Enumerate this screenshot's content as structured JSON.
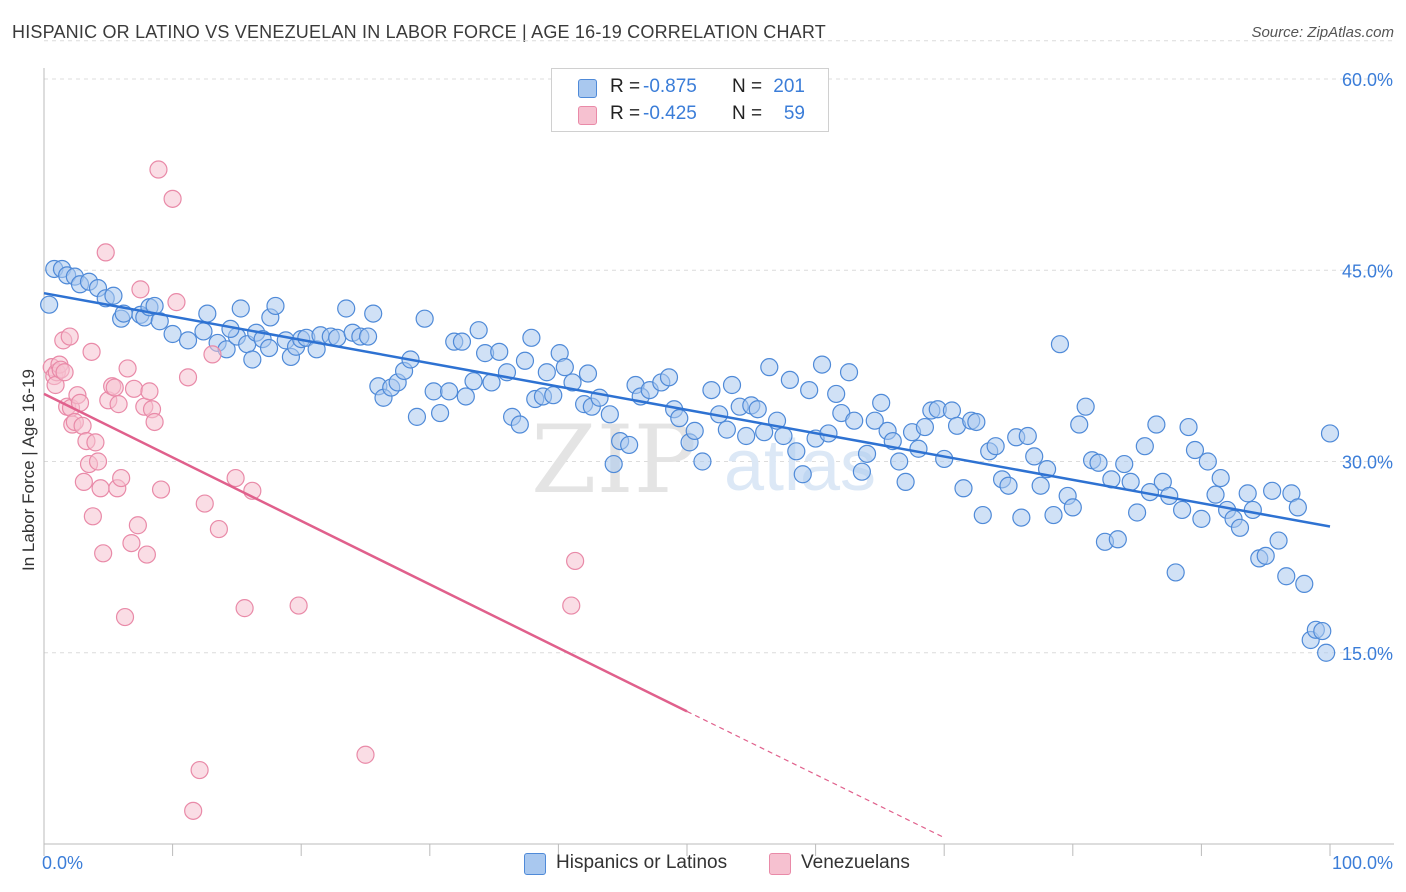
{
  "title": "HISPANIC OR LATINO VS VENEZUELAN IN LABOR FORCE | AGE 16-19 CORRELATION CHART",
  "source": "Source: ZipAtlas.com",
  "watermark": {
    "zip": "ZIP",
    "atlas": "atlas"
  },
  "colors": {
    "blue_fill": "#a9c8ef",
    "blue_stroke": "#4f8ad8",
    "blue_line": "#2e72d2",
    "pink_fill": "#f6c1d0",
    "pink_stroke": "#e98aa8",
    "pink_line": "#e0608c",
    "axis_label": "#3b7dd8",
    "grid": "#dcdcdc"
  },
  "legend": {
    "rows": [
      {
        "r_label": "R =",
        "r_value": "-0.875",
        "n_label": "N =",
        "n_value": "201"
      },
      {
        "r_label": "R =",
        "r_value": "-0.425",
        "n_label": "N =",
        "n_value": "59"
      }
    ]
  },
  "bottom_legend": [
    "Hispanics or Latinos",
    "Venezuelans"
  ],
  "chart_data": {
    "type": "scatter",
    "title": "HISPANIC OR LATINO VS VENEZUELAN IN LABOR FORCE | AGE 16-19 CORRELATION CHART",
    "xlabel": "",
    "ylabel": "In Labor Force | Age 16-19",
    "xlim": [
      0,
      100
    ],
    "ylim": [
      0,
      63
    ],
    "x_tick_labels": [
      "0.0%",
      "100.0%"
    ],
    "y_ticks": [
      15,
      30,
      45,
      60
    ],
    "y_tick_labels": [
      "15.0%",
      "30.0%",
      "45.0%",
      "60.0%"
    ],
    "grid": true,
    "legend_position": "top-center",
    "series": [
      {
        "name": "Hispanics or Latinos",
        "color": "#4f8ad8",
        "trend": {
          "x": [
            0,
            100
          ],
          "y": [
            43.2,
            24.9
          ]
        },
        "points": [
          [
            0.4,
            42.3
          ],
          [
            0.8,
            45.1
          ],
          [
            1.4,
            45.1
          ],
          [
            1.8,
            44.6
          ],
          [
            2.4,
            44.5
          ],
          [
            2.8,
            43.9
          ],
          [
            3.5,
            44.1
          ],
          [
            4.2,
            43.6
          ],
          [
            4.8,
            42.8
          ],
          [
            5.4,
            43.0
          ],
          [
            6.0,
            41.2
          ],
          [
            6.2,
            41.6
          ],
          [
            7.5,
            41.5
          ],
          [
            7.8,
            41.3
          ],
          [
            8.2,
            42.1
          ],
          [
            8.6,
            42.2
          ],
          [
            9.0,
            41.0
          ],
          [
            10.0,
            40.0
          ],
          [
            11.2,
            39.5
          ],
          [
            12.4,
            40.2
          ],
          [
            12.7,
            41.6
          ],
          [
            13.5,
            39.3
          ],
          [
            14.2,
            38.8
          ],
          [
            15.0,
            39.8
          ],
          [
            14.5,
            40.4
          ],
          [
            15.3,
            42.0
          ],
          [
            15.8,
            39.2
          ],
          [
            16.2,
            38.0
          ],
          [
            16.5,
            40.1
          ],
          [
            17.0,
            39.6
          ],
          [
            17.5,
            38.9
          ],
          [
            17.6,
            41.3
          ],
          [
            18.0,
            42.2
          ],
          [
            18.8,
            39.5
          ],
          [
            19.2,
            38.2
          ],
          [
            19.6,
            39.0
          ],
          [
            20.0,
            39.6
          ],
          [
            20.4,
            39.7
          ],
          [
            21.2,
            38.8
          ],
          [
            21.5,
            39.9
          ],
          [
            22.3,
            39.8
          ],
          [
            22.8,
            39.7
          ],
          [
            23.5,
            42.0
          ],
          [
            24.0,
            40.1
          ],
          [
            24.6,
            39.8
          ],
          [
            25.2,
            39.8
          ],
          [
            25.6,
            41.6
          ],
          [
            26.0,
            35.9
          ],
          [
            26.4,
            35.0
          ],
          [
            27.0,
            35.8
          ],
          [
            27.5,
            36.2
          ],
          [
            28.0,
            37.1
          ],
          [
            28.5,
            38.0
          ],
          [
            29.0,
            33.5
          ],
          [
            29.6,
            41.2
          ],
          [
            30.3,
            35.5
          ],
          [
            30.8,
            33.8
          ],
          [
            31.5,
            35.5
          ],
          [
            31.9,
            39.4
          ],
          [
            32.5,
            39.4
          ],
          [
            32.8,
            35.1
          ],
          [
            33.4,
            36.3
          ],
          [
            33.8,
            40.3
          ],
          [
            34.3,
            38.5
          ],
          [
            34.8,
            36.2
          ],
          [
            35.4,
            38.6
          ],
          [
            36.0,
            37.0
          ],
          [
            36.4,
            33.5
          ],
          [
            37.0,
            32.9
          ],
          [
            37.4,
            37.9
          ],
          [
            37.9,
            39.7
          ],
          [
            38.2,
            34.9
          ],
          [
            38.8,
            35.1
          ],
          [
            39.1,
            37.0
          ],
          [
            39.6,
            35.2
          ],
          [
            40.1,
            38.5
          ],
          [
            40.5,
            37.4
          ],
          [
            41.1,
            36.2
          ],
          [
            42.0,
            34.5
          ],
          [
            42.3,
            36.9
          ],
          [
            42.6,
            34.3
          ],
          [
            43.2,
            35.0
          ],
          [
            44.0,
            33.7
          ],
          [
            44.3,
            29.8
          ],
          [
            44.8,
            31.6
          ],
          [
            45.5,
            31.3
          ],
          [
            46.0,
            36.0
          ],
          [
            46.4,
            35.1
          ],
          [
            47.1,
            35.6
          ],
          [
            48.0,
            36.2
          ],
          [
            48.6,
            36.6
          ],
          [
            49.0,
            34.1
          ],
          [
            49.4,
            33.4
          ],
          [
            50.2,
            31.5
          ],
          [
            50.6,
            32.4
          ],
          [
            51.2,
            30.0
          ],
          [
            51.9,
            35.6
          ],
          [
            52.5,
            33.7
          ],
          [
            53.1,
            32.5
          ],
          [
            53.5,
            36.0
          ],
          [
            54.1,
            34.3
          ],
          [
            54.6,
            32.0
          ],
          [
            55.0,
            34.4
          ],
          [
            55.5,
            34.1
          ],
          [
            56.0,
            32.3
          ],
          [
            56.4,
            37.4
          ],
          [
            57.0,
            33.2
          ],
          [
            57.5,
            32.0
          ],
          [
            58.0,
            36.4
          ],
          [
            58.5,
            30.8
          ],
          [
            59.0,
            29.0
          ],
          [
            59.5,
            35.6
          ],
          [
            60.0,
            31.8
          ],
          [
            60.5,
            37.6
          ],
          [
            61.0,
            32.2
          ],
          [
            61.6,
            35.3
          ],
          [
            62.0,
            33.8
          ],
          [
            62.6,
            37.0
          ],
          [
            63.0,
            33.2
          ],
          [
            63.6,
            29.2
          ],
          [
            64.0,
            30.6
          ],
          [
            64.6,
            33.2
          ],
          [
            65.1,
            34.6
          ],
          [
            65.6,
            32.4
          ],
          [
            66.0,
            31.6
          ],
          [
            66.5,
            30.0
          ],
          [
            67.0,
            28.4
          ],
          [
            67.5,
            32.3
          ],
          [
            68.0,
            31.0
          ],
          [
            68.5,
            32.7
          ],
          [
            69.0,
            34.0
          ],
          [
            69.5,
            34.1
          ],
          [
            70.0,
            30.2
          ],
          [
            70.6,
            34.0
          ],
          [
            71.0,
            32.8
          ],
          [
            71.5,
            27.9
          ],
          [
            72.1,
            33.2
          ],
          [
            72.5,
            33.1
          ],
          [
            73.0,
            25.8
          ],
          [
            73.5,
            30.8
          ],
          [
            74.0,
            31.2
          ],
          [
            74.5,
            28.6
          ],
          [
            75.0,
            28.1
          ],
          [
            75.6,
            31.9
          ],
          [
            76.0,
            25.6
          ],
          [
            76.5,
            32.0
          ],
          [
            77.0,
            30.4
          ],
          [
            77.5,
            28.1
          ],
          [
            78.0,
            29.4
          ],
          [
            78.5,
            25.8
          ],
          [
            79.0,
            39.2
          ],
          [
            79.6,
            27.3
          ],
          [
            80.0,
            26.4
          ],
          [
            80.5,
            32.9
          ],
          [
            81.0,
            34.3
          ],
          [
            81.5,
            30.1
          ],
          [
            82.0,
            29.9
          ],
          [
            82.5,
            23.7
          ],
          [
            83.0,
            28.6
          ],
          [
            83.5,
            23.9
          ],
          [
            84.0,
            29.8
          ],
          [
            84.5,
            28.4
          ],
          [
            85.0,
            26.0
          ],
          [
            85.6,
            31.2
          ],
          [
            86.0,
            27.6
          ],
          [
            86.5,
            32.9
          ],
          [
            87.0,
            28.4
          ],
          [
            87.5,
            27.3
          ],
          [
            88.0,
            21.3
          ],
          [
            88.5,
            26.2
          ],
          [
            89.0,
            32.7
          ],
          [
            89.5,
            30.9
          ],
          [
            90.0,
            25.5
          ],
          [
            90.5,
            30.0
          ],
          [
            91.1,
            27.4
          ],
          [
            91.5,
            28.7
          ],
          [
            92.0,
            26.2
          ],
          [
            92.5,
            25.5
          ],
          [
            93.0,
            24.8
          ],
          [
            93.6,
            27.5
          ],
          [
            94.0,
            26.2
          ],
          [
            94.5,
            22.4
          ],
          [
            95.0,
            22.6
          ],
          [
            95.5,
            27.7
          ],
          [
            96.0,
            23.8
          ],
          [
            96.6,
            21.0
          ],
          [
            97.0,
            27.5
          ],
          [
            97.5,
            26.4
          ],
          [
            98.0,
            20.4
          ],
          [
            98.5,
            16.0
          ],
          [
            98.9,
            16.8
          ],
          [
            99.4,
            16.7
          ],
          [
            99.7,
            15.0
          ],
          [
            100.0,
            32.2
          ]
        ]
      },
      {
        "name": "Venezuelans",
        "color": "#e98aa8",
        "trend": {
          "x": [
            0,
            50
          ],
          "y": [
            35.3,
            10.4
          ],
          "dashed_to": {
            "x": 70,
            "y": 0.5
          }
        },
        "points": [
          [
            0.6,
            37.4
          ],
          [
            0.8,
            36.7
          ],
          [
            1.0,
            37.0
          ],
          [
            0.9,
            36.0
          ],
          [
            1.2,
            37.6
          ],
          [
            1.3,
            37.2
          ],
          [
            1.5,
            39.5
          ],
          [
            1.8,
            34.3
          ],
          [
            1.6,
            37.0
          ],
          [
            2.0,
            39.8
          ],
          [
            2.1,
            34.2
          ],
          [
            2.2,
            32.9
          ],
          [
            2.4,
            33.1
          ],
          [
            2.6,
            35.2
          ],
          [
            2.8,
            34.6
          ],
          [
            3.0,
            32.8
          ],
          [
            3.1,
            28.4
          ],
          [
            3.3,
            31.6
          ],
          [
            3.5,
            29.8
          ],
          [
            3.7,
            38.6
          ],
          [
            3.8,
            25.7
          ],
          [
            4.0,
            31.5
          ],
          [
            4.2,
            30.0
          ],
          [
            4.4,
            27.9
          ],
          [
            4.6,
            22.8
          ],
          [
            4.8,
            46.4
          ],
          [
            5.0,
            34.8
          ],
          [
            5.3,
            35.9
          ],
          [
            5.5,
            35.8
          ],
          [
            5.7,
            27.9
          ],
          [
            5.8,
            34.5
          ],
          [
            6.0,
            28.7
          ],
          [
            6.3,
            17.8
          ],
          [
            6.5,
            37.3
          ],
          [
            6.8,
            23.6
          ],
          [
            7.0,
            35.7
          ],
          [
            7.3,
            25.0
          ],
          [
            7.5,
            43.5
          ],
          [
            7.8,
            34.3
          ],
          [
            8.0,
            22.7
          ],
          [
            8.2,
            35.5
          ],
          [
            8.4,
            34.1
          ],
          [
            8.6,
            33.1
          ],
          [
            8.9,
            52.9
          ],
          [
            9.1,
            27.8
          ],
          [
            10.0,
            50.6
          ],
          [
            10.3,
            42.5
          ],
          [
            11.2,
            36.6
          ],
          [
            11.6,
            2.6
          ],
          [
            12.1,
            5.8
          ],
          [
            12.5,
            26.7
          ],
          [
            13.1,
            38.4
          ],
          [
            13.6,
            24.7
          ],
          [
            14.9,
            28.7
          ],
          [
            15.6,
            18.5
          ],
          [
            16.2,
            27.7
          ],
          [
            19.8,
            18.7
          ],
          [
            25.0,
            7.0
          ],
          [
            41.0,
            18.7
          ],
          [
            41.3,
            22.2
          ]
        ]
      }
    ]
  }
}
